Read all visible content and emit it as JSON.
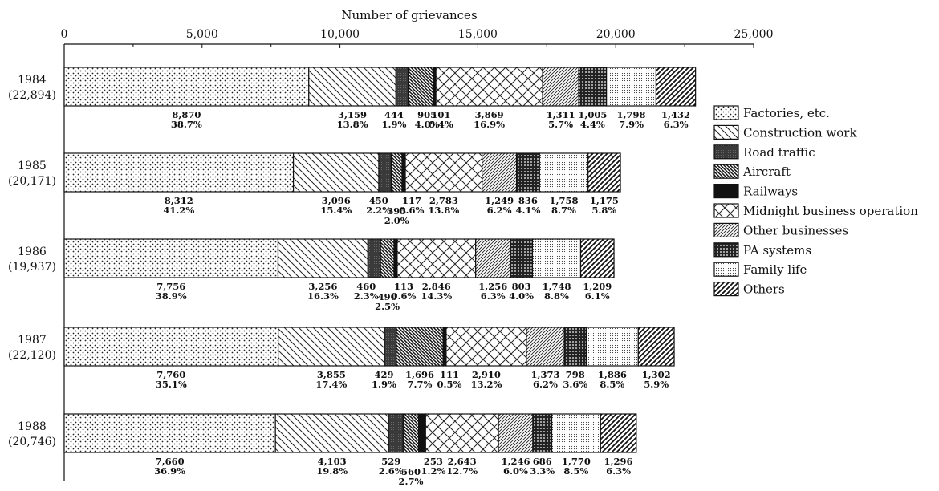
{
  "chart_data": {
    "type": "bar",
    "orientation": "horizontal",
    "stacked": true,
    "xlabel": "Number of grievances",
    "xlim": [
      0,
      25000
    ],
    "x_ticks": [
      "0",
      "5,000",
      "10,000",
      "15,000",
      "20,000",
      "25,000"
    ],
    "legend_placement": "right",
    "categories": [
      {
        "year": "1984",
        "total": "(22,894)"
      },
      {
        "year": "1985",
        "total": "(20,171)"
      },
      {
        "year": "1986",
        "total": "(19,937)"
      },
      {
        "year": "1987",
        "total": "(22,120)"
      },
      {
        "year": "1988",
        "total": "(20,746)"
      }
    ],
    "series": [
      {
        "name": "Factories, etc.",
        "pattern": "dots",
        "values": [
          8870,
          8312,
          7756,
          7760,
          7660
        ],
        "labels": [
          "8,870",
          "8,312",
          "7,756",
          "7,760",
          "7,660"
        ],
        "percents": [
          "38.7%",
          "41.2%",
          "38.9%",
          "35.1%",
          "36.9%"
        ]
      },
      {
        "name": "Construction work",
        "pattern": "diag-back",
        "values": [
          3159,
          3096,
          3256,
          3855,
          4103
        ],
        "labels": [
          "3,159",
          "3,096",
          "3,256",
          "3,855",
          "4,103"
        ],
        "percents": [
          "13.8%",
          "15.4%",
          "16.3%",
          "17.4%",
          "19.8%"
        ]
      },
      {
        "name": "Road traffic",
        "pattern": "dark",
        "values": [
          444,
          450,
          460,
          429,
          529
        ],
        "labels": [
          "444",
          "450",
          "460",
          "429",
          "529"
        ],
        "percents": [
          "1.9%",
          "2.2%",
          "2.3%",
          "1.9%",
          "2.6%"
        ]
      },
      {
        "name": "Aircraft",
        "pattern": "diag-back-dense",
        "values": [
          905,
          395,
          490,
          1696,
          560
        ],
        "labels": [
          "905",
          "395",
          "490",
          "1,696",
          "560"
        ],
        "percents": [
          "4.0%",
          "2.0%",
          "2.5%",
          "7.7%",
          "2.7%"
        ]
      },
      {
        "name": "Railways",
        "pattern": "black",
        "values": [
          101,
          117,
          113,
          111,
          253
        ],
        "labels": [
          "101",
          "117",
          "113",
          "111",
          "253"
        ],
        "percents": [
          "0.4%",
          "0.6%",
          "0.6%",
          "0.5%",
          "1.2%"
        ]
      },
      {
        "name": "Midnight business operation",
        "pattern": "crosshatch",
        "values": [
          3869,
          2783,
          2846,
          2910,
          2643
        ],
        "labels": [
          "3,869",
          "2,783",
          "2,846",
          "2,910",
          "2,643"
        ],
        "percents": [
          "16.9%",
          "13.8%",
          "14.3%",
          "13.2%",
          "12.7%"
        ]
      },
      {
        "name": "Other businesses",
        "pattern": "diag-fwd",
        "values": [
          1311,
          1249,
          1256,
          1373,
          1246
        ],
        "labels": [
          "1,311",
          "1,249",
          "1,256",
          "1,373",
          "1,246"
        ],
        "percents": [
          "5.7%",
          "6.2%",
          "6.3%",
          "6.2%",
          "6.0%"
        ]
      },
      {
        "name": "PA systems",
        "pattern": "dark-dots",
        "values": [
          1005,
          836,
          803,
          798,
          686
        ],
        "labels": [
          "1,005",
          "836",
          "803",
          "798",
          "686"
        ],
        "percents": [
          "4.4%",
          "4.1%",
          "4.0%",
          "3.6%",
          "3.3%"
        ]
      },
      {
        "name": "Family life",
        "pattern": "fine-dots",
        "values": [
          1798,
          1758,
          1748,
          1886,
          1770
        ],
        "labels": [
          "1,798",
          "1,758",
          "1,748",
          "1,886",
          "1,770"
        ],
        "percents": [
          "7.9%",
          "8.7%",
          "8.8%",
          "8.5%",
          "8.5%"
        ]
      },
      {
        "name": "Others",
        "pattern": "diag-fwd-bold",
        "values": [
          1432,
          1175,
          1209,
          1302,
          1296
        ],
        "labels": [
          "1,432",
          "1,175",
          "1,209",
          "1,302",
          "1,296"
        ],
        "percents": [
          "6.3%",
          "5.8%",
          "6.1%",
          "5.9%",
          "6.3%"
        ]
      }
    ]
  }
}
